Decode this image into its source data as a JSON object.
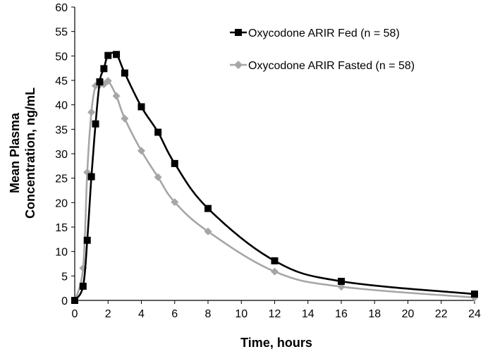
{
  "chart_data": {
    "type": "line",
    "xlabel": "Time, hours",
    "ylabel_lines": [
      "Mean Plasma",
      "Concentration, ng/mL"
    ],
    "xlim": [
      0,
      24
    ],
    "ylim": [
      0,
      60
    ],
    "x_ticks": [
      0,
      2,
      4,
      6,
      8,
      10,
      12,
      14,
      16,
      18,
      20,
      22,
      24
    ],
    "y_ticks": [
      0,
      5,
      10,
      15,
      20,
      25,
      30,
      35,
      40,
      45,
      50,
      55,
      60
    ],
    "grid": false,
    "legend_position": "top-right",
    "series": [
      {
        "name": "Oxycodone ARIR Fed (n = 58)",
        "color": "#000000",
        "marker": "square",
        "x": [
          0,
          0.5,
          0.75,
          1,
          1.25,
          1.5,
          1.75,
          2,
          2.5,
          3,
          4,
          5,
          6,
          8,
          12,
          16,
          24
        ],
        "y": [
          0,
          2.9,
          12.3,
          25.3,
          36.1,
          44.7,
          47.4,
          50.1,
          50.3,
          46.5,
          39.6,
          34.4,
          28.0,
          18.8,
          8.1,
          3.9,
          1.3
        ]
      },
      {
        "name": "Oxycodone ARIR Fasted (n = 58)",
        "color": "#a6a6a6",
        "marker": "diamond",
        "x": [
          0,
          0.5,
          0.75,
          1,
          1.25,
          1.5,
          1.75,
          2,
          2.5,
          3,
          4,
          5,
          6,
          8,
          12,
          16,
          24
        ],
        "y": [
          0,
          6.6,
          26.2,
          38.5,
          43.9,
          44.1,
          44.2,
          44.9,
          41.8,
          37.2,
          30.6,
          25.2,
          20.1,
          14.1,
          5.9,
          2.8,
          0.6
        ]
      }
    ]
  }
}
